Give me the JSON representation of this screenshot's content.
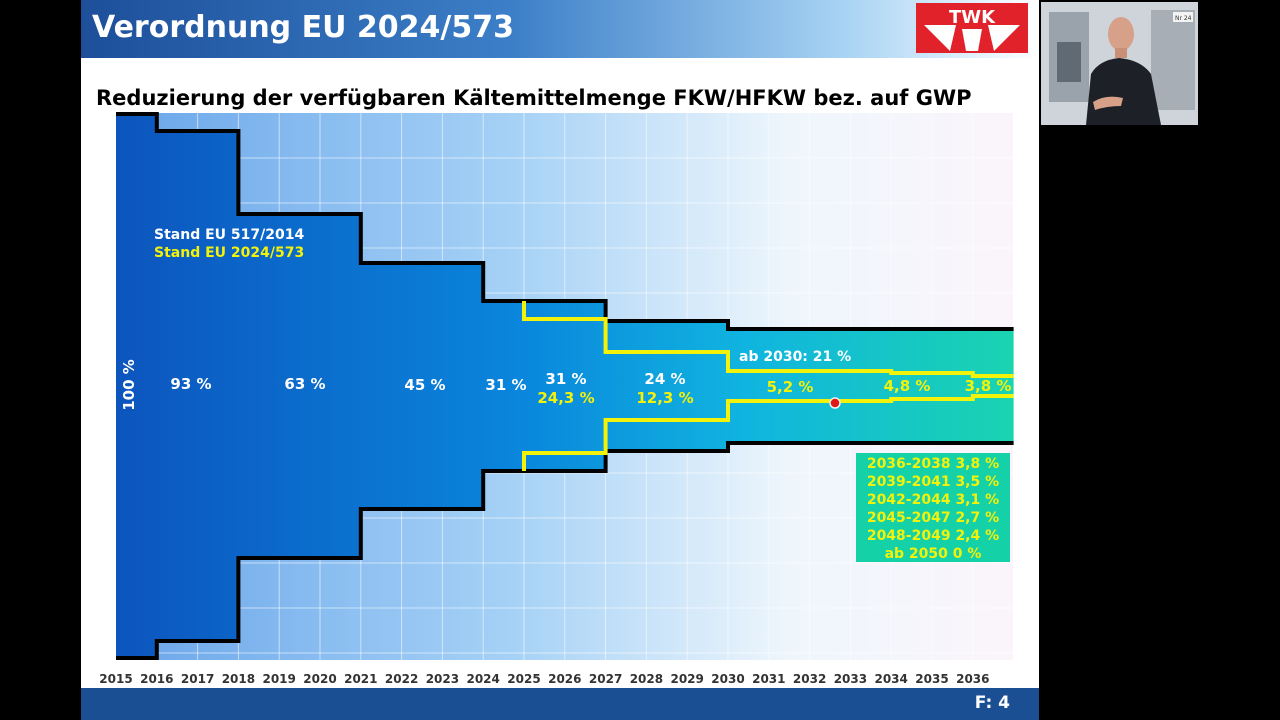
{
  "slide": {
    "title": "Verordnung EU 2024/573",
    "subtitle": "Reduzierung der verfügbaren Kältemittelmenge FKW/HFKW bez. auf GWP",
    "logo_text": "TWK",
    "page_number": "F: 4"
  },
  "chart_data": {
    "type": "area",
    "x": [
      "2015",
      "2016",
      "2017",
      "2018",
      "2019",
      "2020",
      "2021",
      "2022",
      "2023",
      "2024",
      "2025",
      "2026",
      "2027",
      "2028",
      "2029",
      "2030",
      "2031",
      "2032",
      "2033",
      "2034",
      "2035",
      "2036"
    ],
    "legend": [
      "Stand EU 517/2014",
      "Stand EU 2024/573"
    ],
    "series": [
      {
        "name": "Stand EU 517/2014",
        "labels": [
          "100 %",
          "93 %",
          "63 %",
          "45 %",
          "31 %",
          "24 %",
          "ab 2030: 21 %"
        ]
      },
      {
        "name": "Stand EU 2024/573",
        "labels": [
          "31 %",
          "24,3 %",
          "12,3 %",
          "5,2 %",
          "4,8 %",
          "3,8 %"
        ]
      }
    ],
    "future_steps": [
      "2036-2038 3,8 %",
      "2039-2041 3,5 %",
      "2042-2044 3,1 %",
      "2045-2047 2,7 %",
      "2048-2049 2,4 %",
      "ab 2050 0 %"
    ],
    "colors": {
      "old_line": "#000000",
      "new_line": "#f2f20a",
      "fill_start": "#0c55be",
      "fill_end": "#1ad4b0"
    }
  },
  "webcam": {
    "badge": "Nr 24"
  }
}
